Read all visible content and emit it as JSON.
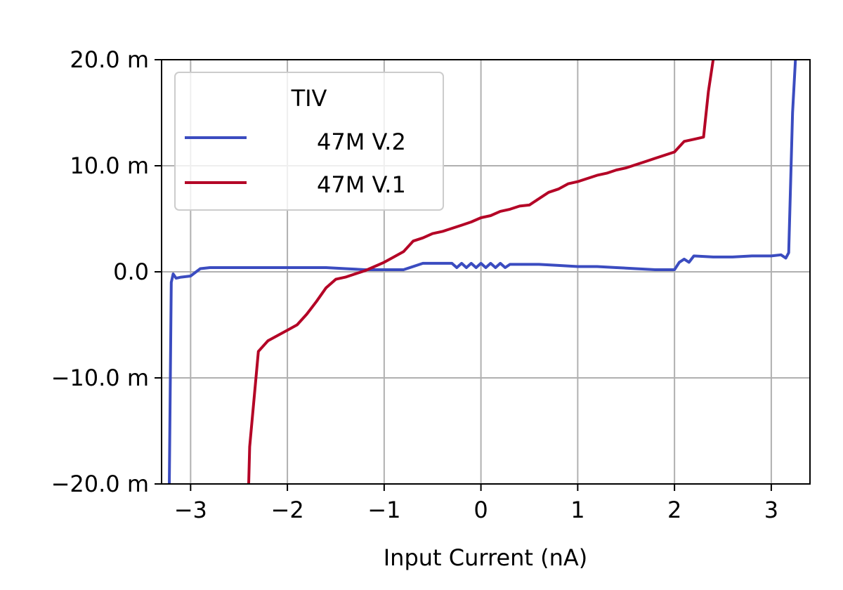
{
  "chart_data": {
    "type": "line",
    "title": "",
    "xlabel": "Input Current (nA)",
    "ylabel": "",
    "xlim": [
      -3.3,
      3.4
    ],
    "ylim": [
      -0.02,
      0.02
    ],
    "x_ticks": [
      -3,
      -2,
      -1,
      0,
      1,
      2,
      3
    ],
    "x_tick_labels": [
      "−3",
      "−2",
      "−1",
      "0",
      "1",
      "2",
      "3"
    ],
    "y_ticks": [
      -0.02,
      -0.01,
      0.0,
      0.01,
      0.02
    ],
    "y_tick_labels": [
      "−20.0 m",
      "−10.0 m",
      "0.0",
      "10.0 m",
      "20.0 m"
    ],
    "grid": true,
    "legend": {
      "title": "TIV",
      "placement": "top-left"
    },
    "series": [
      {
        "name": "47M V.2",
        "color": "#3b4cc0",
        "x": [
          -3.22,
          -3.2,
          -3.18,
          -3.15,
          -3.1,
          -3.0,
          -2.9,
          -2.8,
          -2.6,
          -2.4,
          -2.2,
          -2.0,
          -1.8,
          -1.6,
          -1.4,
          -1.2,
          -1.0,
          -0.8,
          -0.6,
          -0.4,
          -0.3,
          -0.25,
          -0.2,
          -0.15,
          -0.1,
          -0.05,
          0.0,
          0.05,
          0.1,
          0.15,
          0.2,
          0.25,
          0.3,
          0.6,
          0.8,
          1.0,
          1.2,
          1.4,
          1.6,
          1.8,
          2.0,
          2.05,
          2.1,
          2.15,
          2.2,
          2.4,
          2.6,
          2.8,
          3.0,
          3.1,
          3.15,
          3.18,
          3.22,
          3.25
        ],
        "y": [
          -0.02,
          -0.001,
          -0.0002,
          -0.0006,
          -0.0005,
          -0.0004,
          0.0003,
          0.0004,
          0.0004,
          0.0004,
          0.0004,
          0.0004,
          0.0004,
          0.0004,
          0.0003,
          0.0002,
          0.0002,
          0.0002,
          0.0008,
          0.0008,
          0.0008,
          0.0004,
          0.0008,
          0.0004,
          0.0008,
          0.0004,
          0.0008,
          0.0004,
          0.0008,
          0.0004,
          0.0008,
          0.0004,
          0.0007,
          0.0007,
          0.0006,
          0.0005,
          0.0005,
          0.0004,
          0.0003,
          0.0002,
          0.0002,
          0.0009,
          0.0012,
          0.0009,
          0.0015,
          0.0014,
          0.0014,
          0.0015,
          0.0015,
          0.0016,
          0.0013,
          0.0018,
          0.015,
          0.02
        ]
      },
      {
        "name": "47M V.1",
        "color": "#b40426",
        "x": [
          -2.4,
          -2.39,
          -2.3,
          -2.2,
          -2.1,
          -2.0,
          -1.9,
          -1.8,
          -1.7,
          -1.6,
          -1.5,
          -1.4,
          -1.3,
          -1.2,
          -1.1,
          -1.0,
          -0.9,
          -0.8,
          -0.7,
          -0.6,
          -0.5,
          -0.4,
          -0.3,
          -0.2,
          -0.1,
          0.0,
          0.1,
          0.2,
          0.3,
          0.4,
          0.5,
          0.6,
          0.7,
          0.8,
          0.9,
          1.0,
          1.1,
          1.2,
          1.3,
          1.4,
          1.5,
          1.6,
          1.7,
          1.8,
          1.9,
          2.0,
          2.1,
          2.2,
          2.3,
          2.35,
          2.4
        ],
        "y": [
          -0.02,
          -0.0165,
          -0.0075,
          -0.0065,
          -0.006,
          -0.0055,
          -0.005,
          -0.004,
          -0.0028,
          -0.0015,
          -0.0007,
          -0.0005,
          -0.0002,
          0.0001,
          0.0005,
          0.0009,
          0.0014,
          0.0019,
          0.0029,
          0.0032,
          0.0036,
          0.0038,
          0.0041,
          0.0044,
          0.0047,
          0.0051,
          0.0053,
          0.0057,
          0.0059,
          0.0062,
          0.0063,
          0.0069,
          0.0075,
          0.0078,
          0.0083,
          0.0085,
          0.0088,
          0.0091,
          0.0093,
          0.0096,
          0.0098,
          0.0101,
          0.0104,
          0.0107,
          0.011,
          0.0113,
          0.0123,
          0.0125,
          0.0127,
          0.017,
          0.02
        ]
      }
    ]
  }
}
